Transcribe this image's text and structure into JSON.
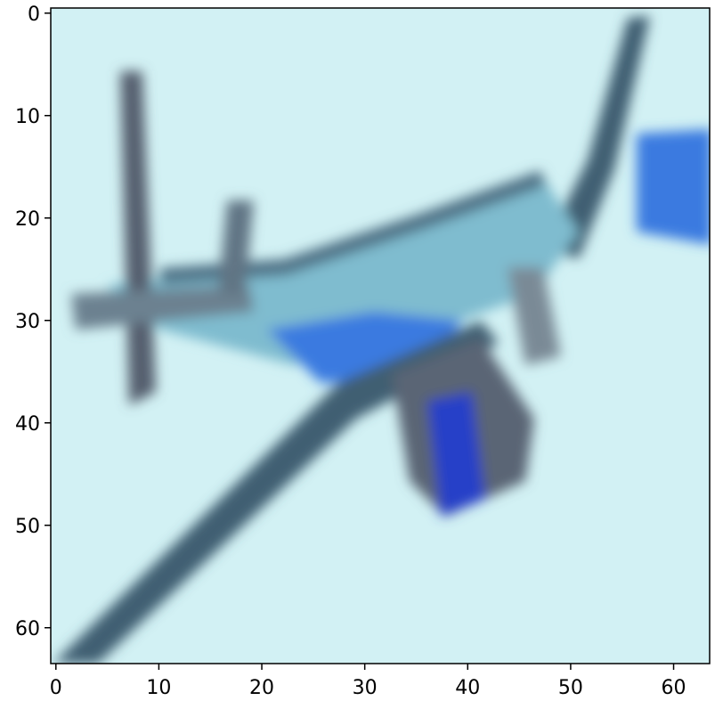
{
  "image_plot": {
    "pixel_grid": [
      64,
      64
    ],
    "x_ticks": [
      "0",
      "10",
      "20",
      "30",
      "40",
      "50",
      "60"
    ],
    "y_ticks": [
      "0",
      "10",
      "20",
      "30",
      "40",
      "50",
      "60"
    ],
    "picture_subject": "blurry-airplane-icon",
    "colors": {
      "background": "#d2f1f4",
      "outline": "#3f5f72",
      "fuselage": "#7fbccf",
      "accent_blue": "#3a7ae0",
      "deep_blue": "#2740c8",
      "shadow": "#555f6e"
    }
  }
}
